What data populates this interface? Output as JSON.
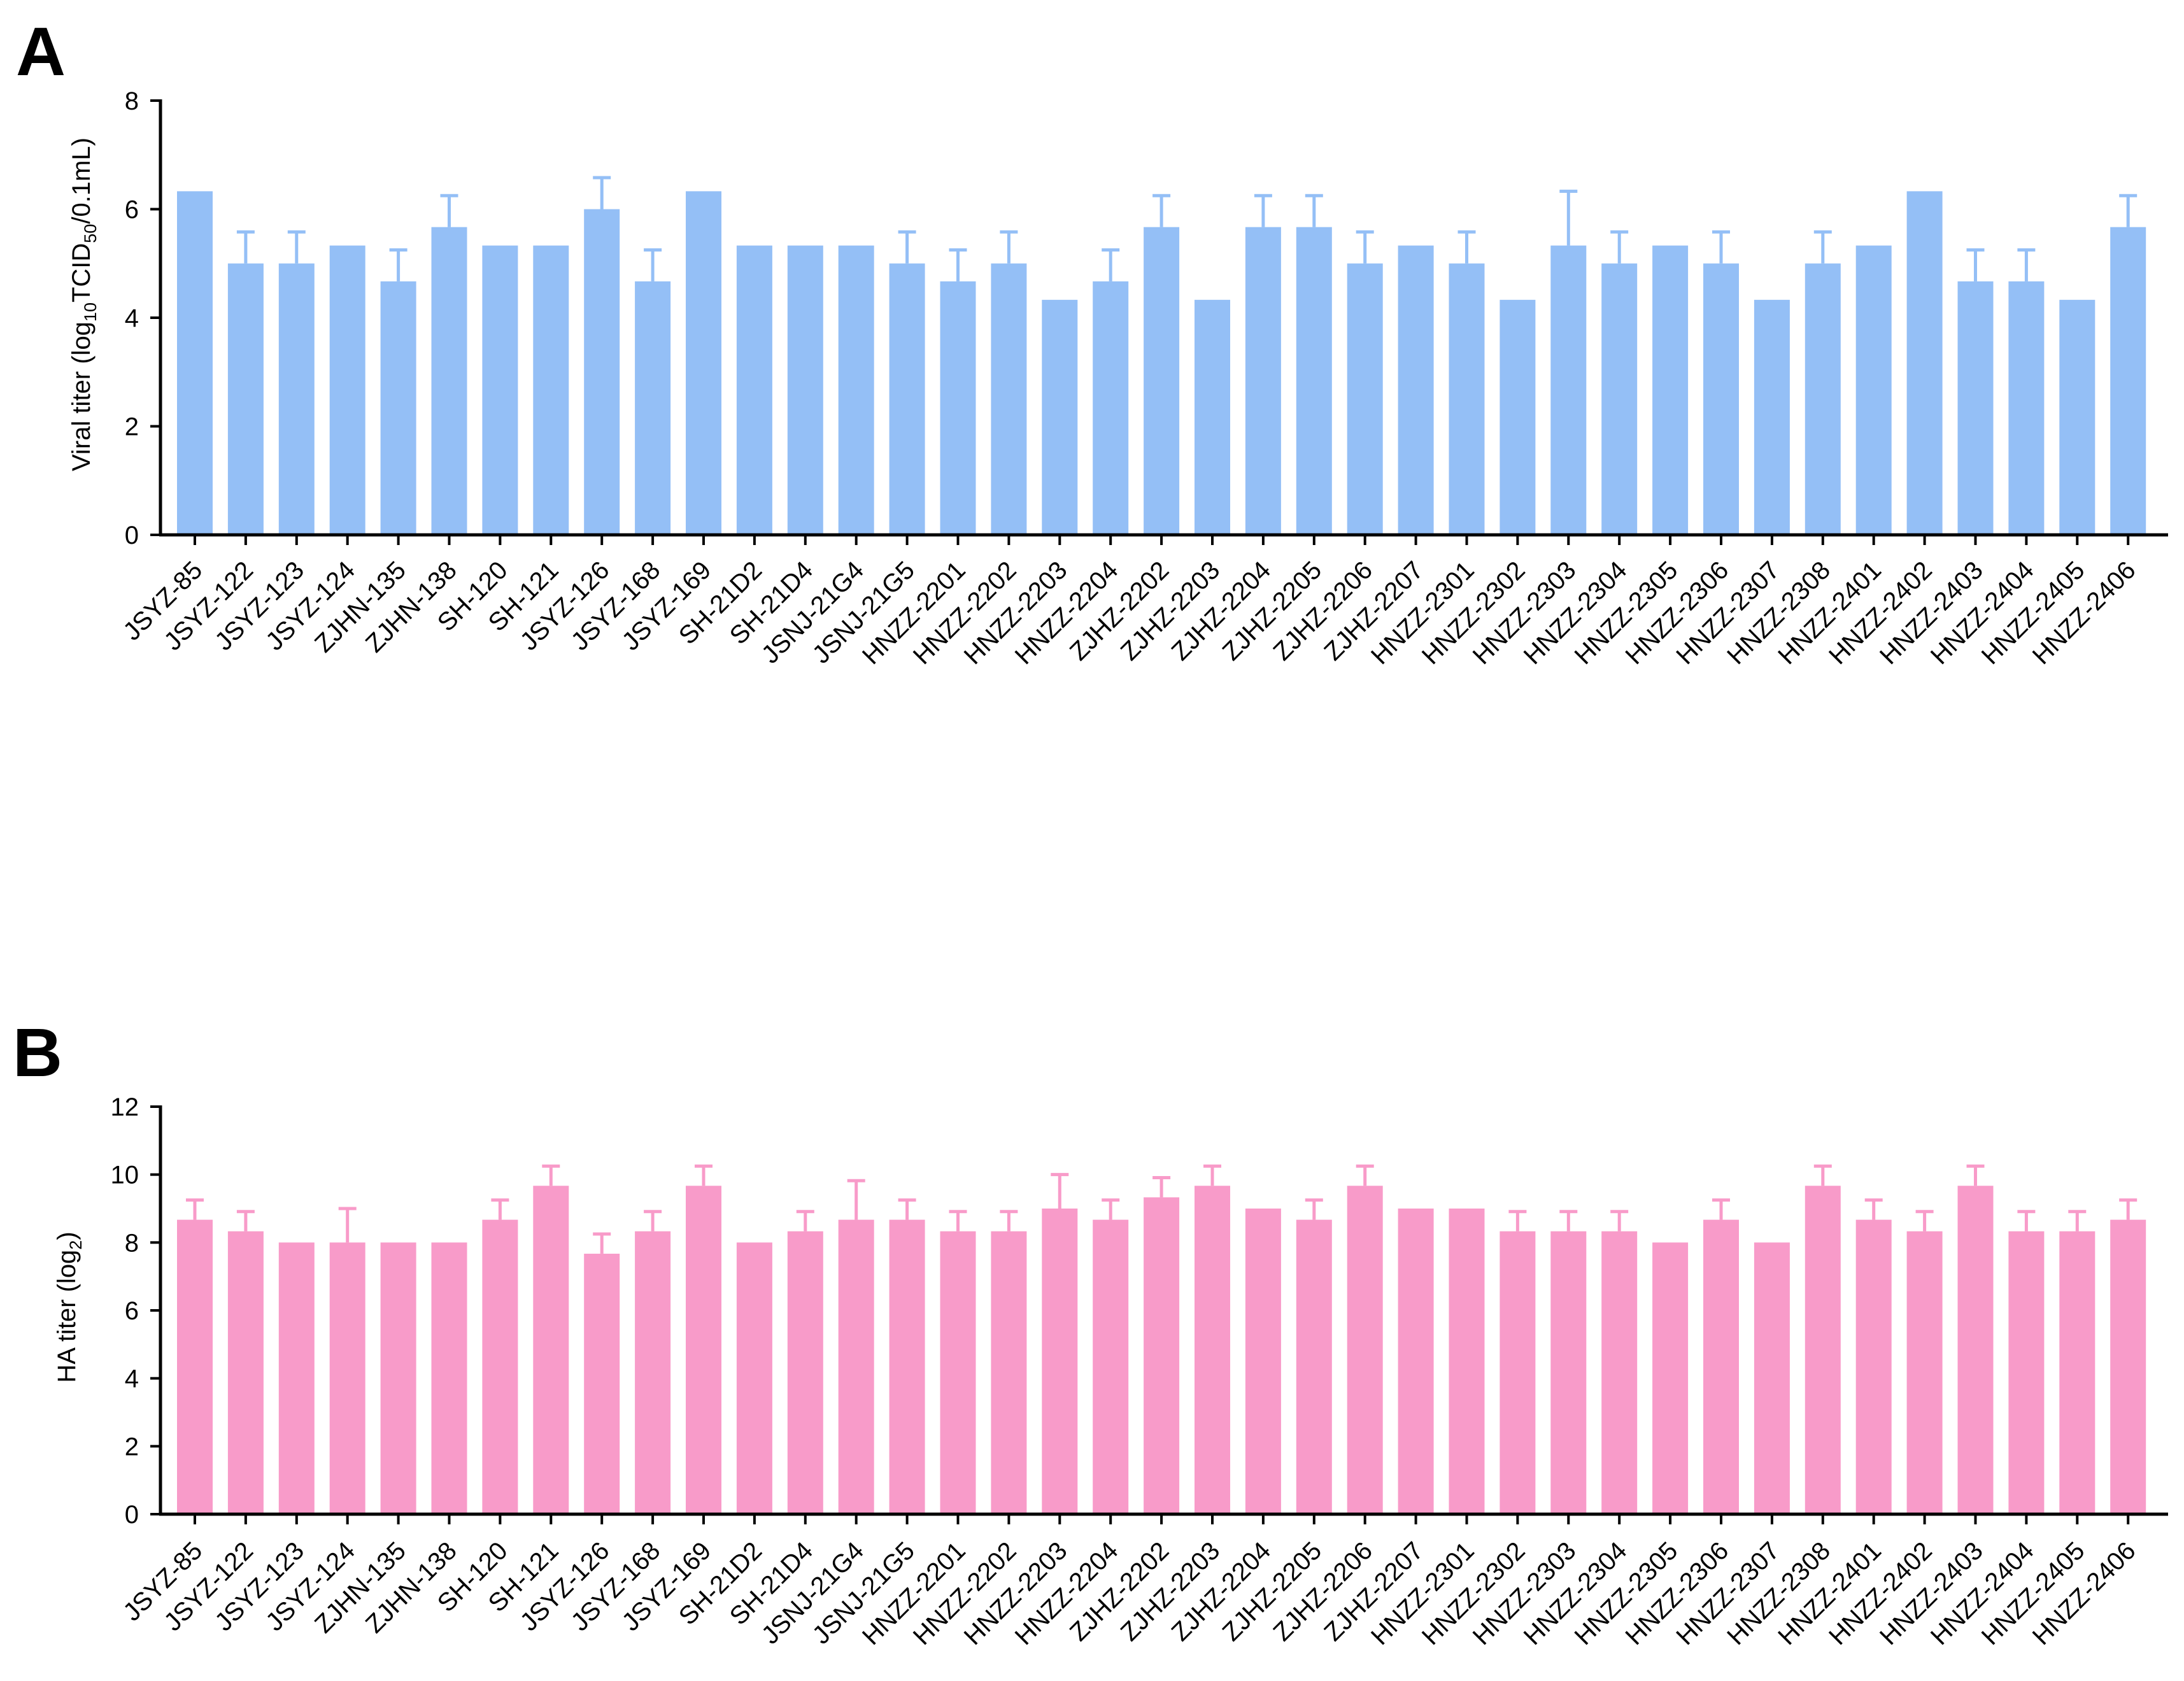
{
  "figure": {
    "panels": [
      {
        "letter": "A"
      },
      {
        "letter": "B"
      }
    ]
  },
  "colors": {
    "panel_a_bar": "#94BFF6",
    "panel_b_bar": "#F89BC9",
    "axis": "#000000"
  },
  "chart_data": [
    {
      "type": "bar",
      "panel": "A",
      "title": "",
      "xlabel": "",
      "ylabel": "Viral titer (log10TCID50/0.1mL)",
      "ylabel_parts": {
        "pre": "Viral titer (log",
        "sub1": "10",
        "mid": "TCID",
        "sub2": "50",
        "post": "/0.1mL)"
      },
      "ylim": [
        0,
        8
      ],
      "yticks": [
        0,
        2,
        4,
        6,
        8
      ],
      "grid": false,
      "bar_color": "#94BFF6",
      "categories": [
        "JSYZ-85",
        "JSYZ-122",
        "JSYZ-123",
        "JSYZ-124",
        "ZJHN-135",
        "ZJHN-138",
        "SH-120",
        "SH-121",
        "JSYZ-126",
        "JSYZ-168",
        "JSYZ-169",
        "SH-21D2",
        "SH-21D4",
        "JSNJ-21G4",
        "JSNJ-21G5",
        "HNZZ-2201",
        "HNZZ-2202",
        "HNZZ-2203",
        "HNZZ-2204",
        "ZJHZ-2202",
        "ZJHZ-2203",
        "ZJHZ-2204",
        "ZJHZ-2205",
        "ZJHZ-2206",
        "ZJHZ-2207",
        "HNZZ-2301",
        "HNZZ-2302",
        "HNZZ-2303",
        "HNZZ-2304",
        "HNZZ-2305",
        "HNZZ-2306",
        "HNZZ-2307",
        "HNZZ-2308",
        "HNZZ-2401",
        "HNZZ-2402",
        "HNZZ-2403",
        "HNZZ-2404",
        "HNZZ-2405",
        "HNZZ-2406"
      ],
      "values": [
        6.33,
        5.0,
        5.0,
        5.33,
        4.67,
        5.67,
        5.33,
        5.33,
        6.0,
        4.67,
        6.33,
        5.33,
        5.33,
        5.33,
        5.0,
        4.67,
        5.0,
        4.33,
        4.67,
        5.67,
        4.33,
        5.67,
        5.67,
        5.0,
        5.33,
        5.0,
        4.33,
        5.33,
        5.0,
        5.33,
        5.0,
        4.33,
        5.0,
        5.33,
        6.33,
        4.67,
        4.67,
        4.33,
        5.67
      ],
      "errors": [
        0,
        0.58,
        0.58,
        0,
        0.58,
        0.58,
        0,
        0,
        0.58,
        0.58,
        0,
        0,
        0,
        0,
        0.58,
        0.58,
        0.58,
        0,
        0.58,
        0.58,
        0,
        0.58,
        0.58,
        0.58,
        0,
        0.58,
        0,
        1.0,
        0.58,
        0,
        0.58,
        0,
        0.58,
        0,
        0,
        0.58,
        0.58,
        0,
        0.58
      ]
    },
    {
      "type": "bar",
      "panel": "B",
      "title": "",
      "xlabel": "",
      "ylabel": "HA titer (log2)",
      "ylabel_parts": {
        "pre": "HA titer (log",
        "sub1": "2",
        "mid": "",
        "sub2": "",
        "post": ")"
      },
      "ylim": [
        0,
        12
      ],
      "yticks": [
        0,
        2,
        4,
        6,
        8,
        10,
        12
      ],
      "grid": false,
      "bar_color": "#F89BC9",
      "categories": [
        "JSYZ-85",
        "JSYZ-122",
        "JSYZ-123",
        "JSYZ-124",
        "ZJHN-135",
        "ZJHN-138",
        "SH-120",
        "SH-121",
        "JSYZ-126",
        "JSYZ-168",
        "JSYZ-169",
        "SH-21D2",
        "SH-21D4",
        "JSNJ-21G4",
        "JSNJ-21G5",
        "HNZZ-2201",
        "HNZZ-2202",
        "HNZZ-2203",
        "HNZZ-2204",
        "ZJHZ-2202",
        "ZJHZ-2203",
        "ZJHZ-2204",
        "ZJHZ-2205",
        "ZJHZ-2206",
        "ZJHZ-2207",
        "HNZZ-2301",
        "HNZZ-2302",
        "HNZZ-2303",
        "HNZZ-2304",
        "HNZZ-2305",
        "HNZZ-2306",
        "HNZZ-2307",
        "HNZZ-2308",
        "HNZZ-2401",
        "HNZZ-2402",
        "HNZZ-2403",
        "HNZZ-2404",
        "HNZZ-2405",
        "HNZZ-2406"
      ],
      "values": [
        8.67,
        8.33,
        8.0,
        8.0,
        8.0,
        8.0,
        8.67,
        9.67,
        7.67,
        8.33,
        9.67,
        8.0,
        8.33,
        8.67,
        8.67,
        8.33,
        8.33,
        9.0,
        8.67,
        9.33,
        9.67,
        9.0,
        8.67,
        9.67,
        9.0,
        9.0,
        8.33,
        8.33,
        8.33,
        8.0,
        8.67,
        8.0,
        9.67,
        8.67,
        8.33,
        9.67,
        8.33,
        8.33,
        8.67
      ],
      "errors": [
        0.58,
        0.58,
        0,
        1.0,
        0,
        0,
        0.58,
        0.58,
        0.58,
        0.58,
        0.58,
        0,
        0.58,
        1.15,
        0.58,
        0.58,
        0.58,
        1.0,
        0.58,
        0.58,
        0.58,
        0,
        0.58,
        0.58,
        0,
        0,
        0.58,
        0.58,
        0.58,
        0,
        0.58,
        0,
        0.58,
        0.58,
        0.58,
        0.58,
        0.58,
        0.58,
        0.58
      ]
    }
  ]
}
